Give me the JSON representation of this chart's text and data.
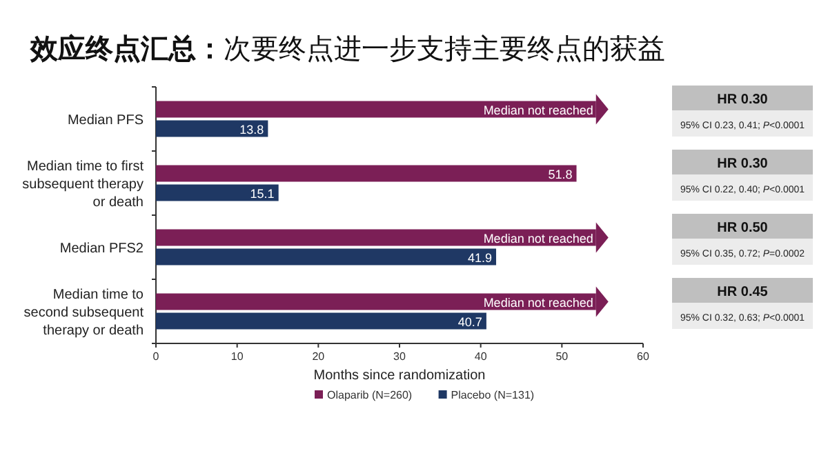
{
  "chart_data": {
    "type": "bar",
    "orientation": "horizontal",
    "title": "**效应终点汇总：**次要终点进一步支持主要终点的获益",
    "categories": [
      "Median PFS",
      "Median time to first subsequent therapy or death",
      "Median PFS2",
      "Median time to second subsequent therapy or death"
    ],
    "series": [
      {
        "name": "Olaparib (N=260)",
        "color": "#7b1f56",
        "values": [
          54.2,
          51.8,
          54.2,
          54.2
        ],
        "value_labels": [
          "Median not reached",
          "51.8",
          "Median not reached",
          "Median not reached"
        ]
      },
      {
        "name": "Placebo (N=131)",
        "color": "#1f3864",
        "values": [
          13.8,
          15.1,
          41.9,
          40.7
        ],
        "value_labels": [
          "13.8",
          "15.1",
          "41.9",
          "40.7"
        ]
      }
    ],
    "xlim": [
      0,
      60
    ],
    "xticks": [
      0,
      10,
      20,
      30,
      40,
      50,
      60
    ],
    "xlabel": "Months since randomization",
    "legend": "bottom",
    "grid": false,
    "annotations": [
      "HR 0.30",
      "95% CI 0.23, 0.41; *P*<0.0001",
      "HR 0.30",
      "95% CI 0.22, 0.40; *P*<0.0001",
      "HR 0.50",
      "95% CI 0.35, 0.72; *P*=0.0002",
      "HR 0.45",
      "95% CI 0.32, 0.63; *P*<0.0001"
    ]
  }
}
